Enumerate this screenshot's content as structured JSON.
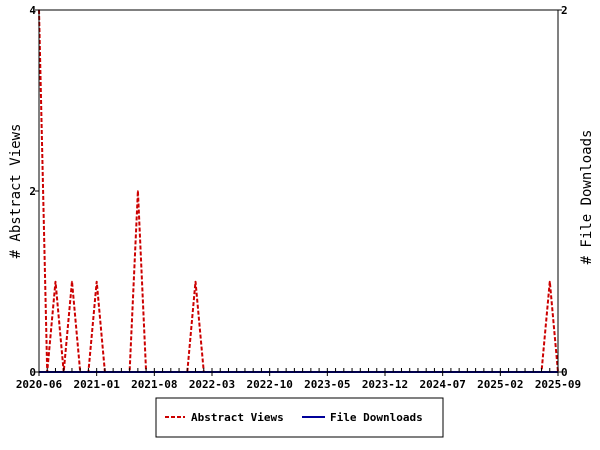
{
  "chart_data": {
    "type": "line",
    "title": "",
    "ylabel_left": "# Abstract Views",
    "ylabel_right": "# File Downloads",
    "x_tick_labels": [
      "2020-06",
      "2021-01",
      "2021-08",
      "2022-03",
      "2022-10",
      "2023-05",
      "2023-12",
      "2024-07",
      "2025-02",
      "2025-09"
    ],
    "x_months_range": [
      "2020-06",
      "2025-09"
    ],
    "ylim_left": [
      0,
      4
    ],
    "ylim_right": [
      0,
      2
    ],
    "y_ticks_left": [
      "0",
      "2",
      "4"
    ],
    "y_ticks_right": [
      "0",
      "2"
    ],
    "grid": false,
    "legend_position": "bottom",
    "series": [
      {
        "name": "Abstract Views",
        "color": "#cc0000",
        "style": "dashed",
        "axis": "left",
        "points": [
          [
            "2020-06",
            4
          ],
          [
            "2020-07",
            0
          ],
          [
            "2020-08",
            1
          ],
          [
            "2020-09",
            0
          ],
          [
            "2020-10",
            1
          ],
          [
            "2020-11",
            0
          ],
          [
            "2020-12",
            0
          ],
          [
            "2021-01",
            1
          ],
          [
            "2021-02",
            0
          ],
          [
            "2021-03",
            0
          ],
          [
            "2021-04",
            0
          ],
          [
            "2021-05",
            0
          ],
          [
            "2021-06",
            2
          ],
          [
            "2021-07",
            0
          ],
          [
            "2021-08",
            0
          ],
          [
            "2021-09",
            0
          ],
          [
            "2021-10",
            0
          ],
          [
            "2021-11",
            0
          ],
          [
            "2021-12",
            0
          ],
          [
            "2022-01",
            1
          ],
          [
            "2022-02",
            0
          ],
          [
            "2025-07",
            0
          ],
          [
            "2025-08",
            1
          ],
          [
            "2025-09",
            0
          ]
        ]
      },
      {
        "name": "File Downloads",
        "color": "#000099",
        "style": "solid",
        "axis": "right",
        "points": [
          [
            "2020-06",
            0
          ],
          [
            "2025-09",
            0
          ]
        ]
      }
    ]
  }
}
